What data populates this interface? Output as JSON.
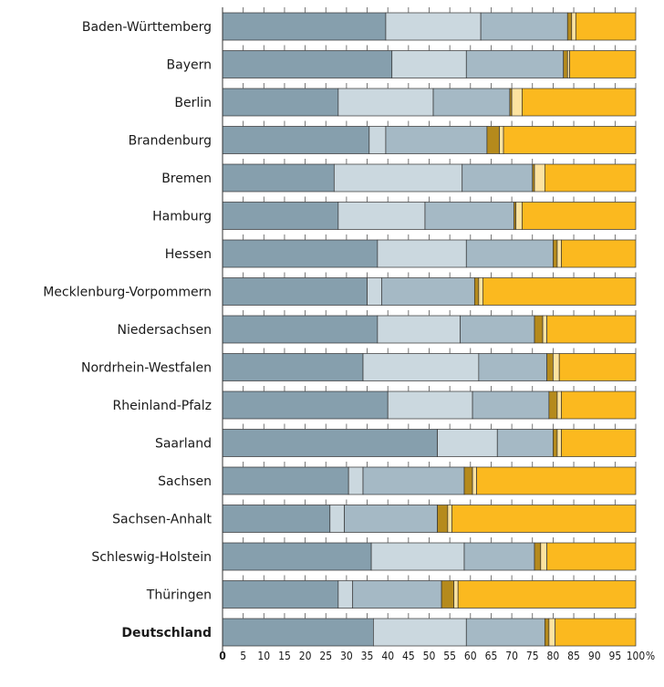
{
  "chart_data": {
    "type": "bar",
    "orientation": "horizontal",
    "stacked": true,
    "categories": [
      "Baden-Württemberg",
      "Bayern",
      "Berlin",
      "Brandenburg",
      "Bremen",
      "Hamburg",
      "Hessen",
      "Mecklenburg-Vorpommern",
      "Niedersachsen",
      "Nordrhein-Westfalen",
      "Rheinland-Pfalz",
      "Saarland",
      "Sachsen",
      "Sachsen-Anhalt",
      "Schleswig-Holstein",
      "Thüringen",
      "Deutschland"
    ],
    "bold_categories": [
      "Deutschland"
    ],
    "series": [
      {
        "values": [
          39.5,
          41.0,
          28.0,
          35.5,
          27.0,
          28.0,
          37.5,
          35.0,
          37.5,
          34.0,
          40.0,
          52.0,
          30.5,
          26.0,
          36.0,
          28.0,
          36.5
        ]
      },
      {
        "values": [
          23.0,
          18.0,
          23.0,
          4.0,
          31.0,
          21.0,
          21.5,
          3.5,
          20.0,
          28.0,
          20.5,
          14.5,
          3.5,
          3.5,
          22.5,
          3.5,
          22.5
        ]
      },
      {
        "values": [
          21.0,
          23.5,
          18.5,
          24.5,
          17.0,
          21.5,
          21.0,
          22.5,
          18.0,
          16.5,
          18.5,
          13.5,
          24.5,
          22.5,
          17.0,
          21.5,
          19.0
        ]
      },
      {
        "values": [
          1.0,
          1.0,
          0.5,
          3.0,
          0.5,
          0.5,
          1.0,
          1.0,
          2.0,
          1.5,
          2.0,
          1.0,
          2.0,
          2.5,
          1.5,
          3.0,
          1.0
        ]
      },
      {
        "values": [
          1.0,
          0.5,
          2.5,
          1.0,
          2.5,
          1.5,
          1.0,
          1.0,
          1.0,
          1.5,
          1.0,
          1.0,
          1.0,
          1.0,
          1.5,
          1.0,
          1.5
        ]
      },
      {
        "values": [
          14.5,
          16.0,
          27.5,
          32.0,
          22.0,
          27.5,
          18.0,
          37.0,
          21.5,
          18.5,
          18.0,
          18.0,
          38.5,
          44.5,
          21.5,
          43.0,
          19.5
        ]
      }
    ],
    "colors": [
      "#869fad",
      "#cbd8df",
      "#a5b9c5",
      "#b58a1c",
      "#fde3a0",
      "#fbb91f"
    ],
    "x_ticks": [
      "0",
      "5",
      "10",
      "15",
      "20",
      "25",
      "30",
      "35",
      "40",
      "45",
      "50",
      "55",
      "60",
      "65",
      "70",
      "75",
      "80",
      "85",
      "90",
      "95",
      "100"
    ],
    "x_unit": "%",
    "xlim": [
      0,
      100
    ],
    "title": "",
    "xlabel": "",
    "ylabel": "",
    "legend": "none",
    "grid": false
  }
}
